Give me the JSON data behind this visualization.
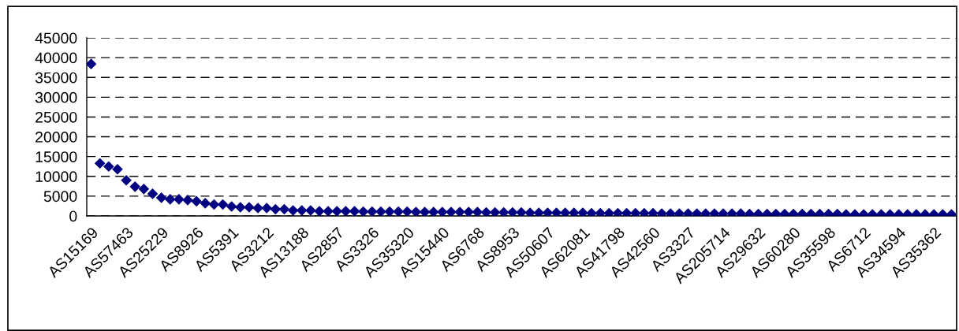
{
  "chart_data": {
    "type": "scatter",
    "categories": [
      "AS15169",
      null,
      null,
      null,
      "AS57463",
      null,
      null,
      null,
      "AS25229",
      null,
      null,
      null,
      "AS8926",
      null,
      null,
      null,
      "AS5391",
      null,
      null,
      null,
      "AS3212",
      null,
      null,
      null,
      "AS13188",
      null,
      null,
      null,
      "AS2857",
      null,
      null,
      null,
      "AS3326",
      null,
      null,
      null,
      "AS35320",
      null,
      null,
      null,
      "AS15440",
      null,
      null,
      null,
      "AS6768",
      null,
      null,
      null,
      "AS8953",
      null,
      null,
      null,
      "AS50607",
      null,
      null,
      null,
      "AS62081",
      null,
      null,
      null,
      "AS41798",
      null,
      null,
      null,
      "AS42560",
      null,
      null,
      null,
      "AS3327",
      null,
      null,
      null,
      "AS205714",
      null,
      null,
      null,
      "AS29632",
      null,
      null,
      null,
      "AS60280",
      null,
      null,
      null,
      "AS35598",
      null,
      null,
      null,
      "AS6712",
      null,
      null,
      null,
      "AS34594",
      null,
      null,
      null,
      "AS35362",
      null,
      null
    ],
    "series": [
      {
        "color": "#000080",
        "values": [
          38400,
          13300,
          12500,
          11800,
          9000,
          7400,
          6800,
          5600,
          4600,
          4200,
          4200,
          4000,
          3700,
          3200,
          2900,
          2900,
          2400,
          2200,
          2200,
          2000,
          2000,
          1700,
          1700,
          1400,
          1400,
          1400,
          1200,
          1200,
          1200,
          1200,
          1200,
          1100,
          1100,
          1100,
          1100,
          1100,
          1100,
          1000,
          1000,
          1000,
          1000,
          1000,
          1000,
          1000,
          1000,
          900,
          900,
          900,
          900,
          900,
          800,
          800,
          800,
          800,
          800,
          800,
          800,
          700,
          700,
          700,
          700,
          700,
          700,
          700,
          700,
          600,
          600,
          600,
          600,
          600,
          600,
          600,
          600,
          600,
          600,
          500,
          500,
          500,
          500,
          500,
          500,
          500,
          500,
          500,
          500,
          500,
          400,
          400,
          400,
          400,
          400,
          400,
          400,
          400,
          400,
          400,
          400,
          400,
          400
        ]
      }
    ],
    "ylim": [
      0,
      45000
    ],
    "yticks": [
      0,
      5000,
      10000,
      15000,
      20000,
      25000,
      30000,
      35000,
      40000,
      45000
    ],
    "grid": "y",
    "marker": "diamond",
    "legend": false
  }
}
